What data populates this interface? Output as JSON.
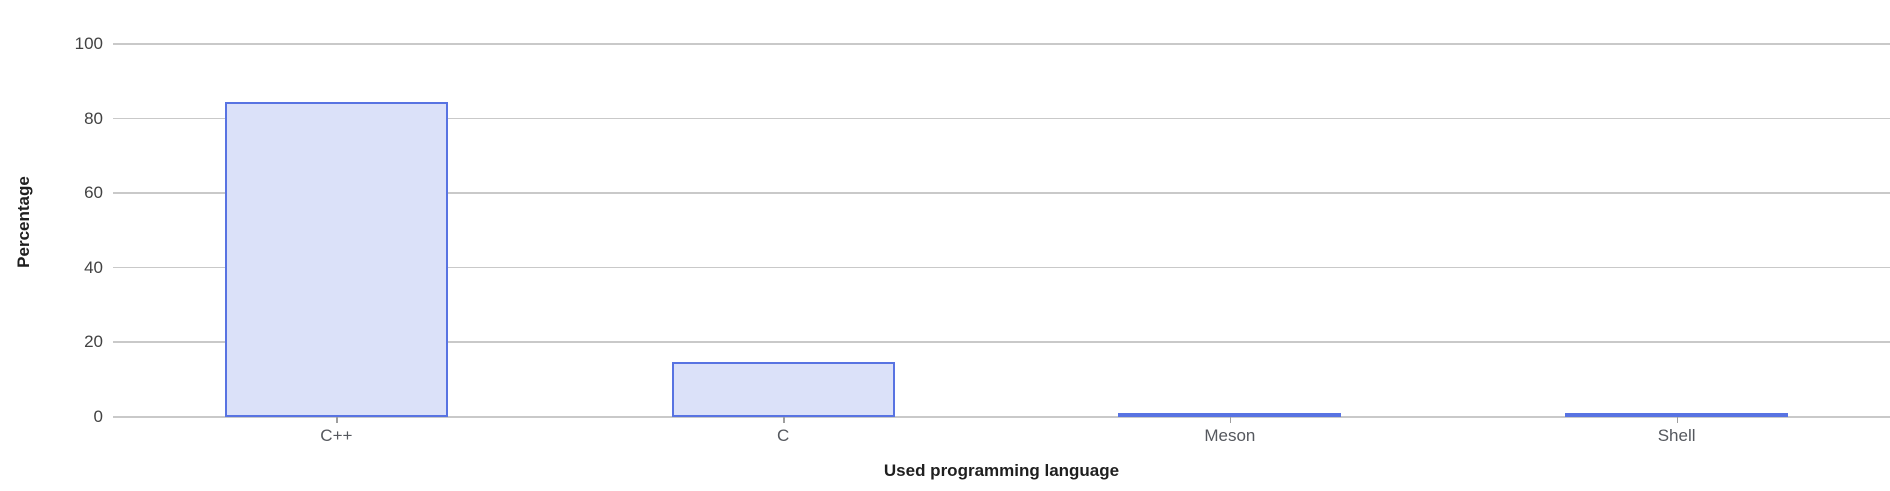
{
  "chart_data": {
    "type": "bar",
    "title": "",
    "categories": [
      "C++",
      "C",
      "Meson",
      "Shell"
    ],
    "values": [
      84.5,
      14.7,
      0.5,
      0.5
    ],
    "xlabel": "Used programming language",
    "ylabel": "Percentage",
    "ylim": [
      0,
      100
    ],
    "yticks": [
      0,
      20,
      40,
      60,
      80,
      100
    ],
    "grid": "horizontal-only",
    "legend_position": "none",
    "colors": {
      "bar_fill": "#dbe1f9",
      "bar_border": "#5873e2",
      "gridline": "#c9c9c9",
      "ytick_label": "#424242",
      "category_label": "#55585e",
      "category_tick": "#9e9e9e",
      "axis_title": "#1f1f1f",
      "background": "#ffffff"
    }
  }
}
